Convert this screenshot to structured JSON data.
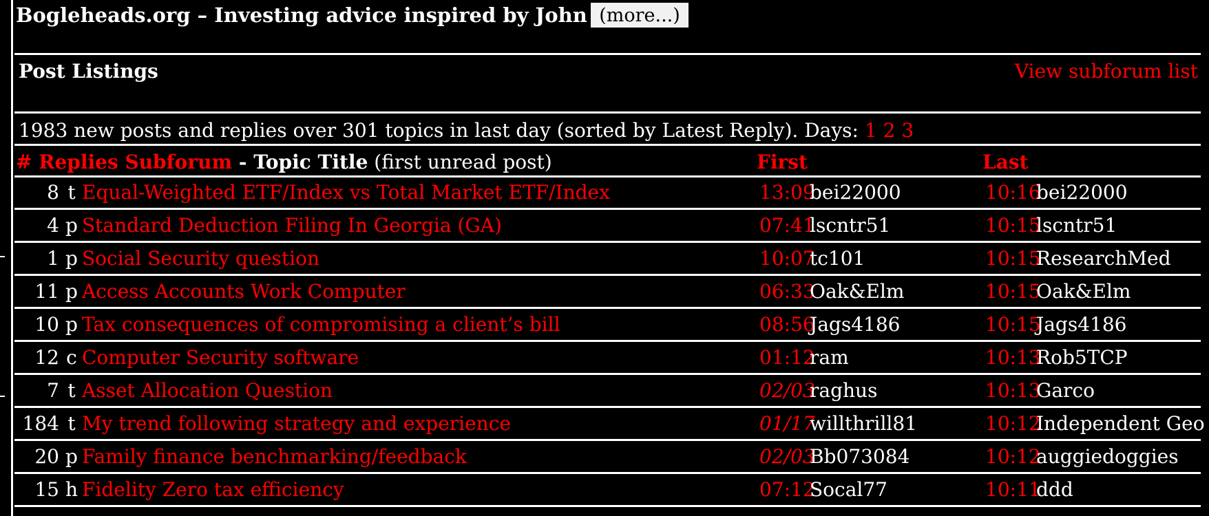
{
  "site": {
    "title": "Bogleheads.org – Investing advice inspired by John Bogle",
    "more_label": "(more...)"
  },
  "section": {
    "title": "Post Listings",
    "subforum_link": "View subforum list"
  },
  "summary": {
    "text": "1983 new posts and replies over 301 topics in last day (sorted by Latest Reply). Days:",
    "days": [
      "1",
      "2",
      "3"
    ]
  },
  "table": {
    "header": {
      "replies_subforum": "# Replies Subforum",
      "dash": " - ",
      "topic_title": "Topic Title",
      "first_unread": " (first unread post)",
      "first": "First",
      "last": "Last"
    },
    "rows": [
      {
        "replies": "8",
        "cat": "t",
        "title": "Equal-Weighted ETF/Index vs Total Market ETF/Index",
        "first_time": "13:09",
        "first_user": "bei22000",
        "last_time": "10:16",
        "last_user": "bei22000"
      },
      {
        "replies": "4",
        "cat": "p",
        "title": "Standard Deduction Filing In Georgia (GA)",
        "first_time": "07:41",
        "first_user": "lscntr51",
        "last_time": "10:15",
        "last_user": "lscntr51"
      },
      {
        "replies": "1",
        "cat": "p",
        "title": "Social Security question",
        "first_time": "10:07",
        "first_user": "tc101",
        "last_time": "10:15",
        "last_user": "ResearchMed"
      },
      {
        "replies": "11",
        "cat": "p",
        "title": "Access Accounts Work Computer",
        "first_time": "06:33",
        "first_user": "Oak&Elm",
        "last_time": "10:15",
        "last_user": "Oak&Elm"
      },
      {
        "replies": "10",
        "cat": "p",
        "title": "Tax consequences of compromising a client’s bill",
        "first_time": "08:56",
        "first_user": "Jags4186",
        "last_time": "10:15",
        "last_user": "Jags4186"
      },
      {
        "replies": "12",
        "cat": "c",
        "title": "Computer Security software",
        "first_time": "01:12",
        "first_user": "ram",
        "last_time": "10:13",
        "last_user": "Rob5TCP"
      },
      {
        "replies": "7",
        "cat": "t",
        "title": "Asset Allocation Question",
        "first_time": "02/03",
        "first_user": "raghus",
        "last_time": "10:13",
        "last_user": "Garco"
      },
      {
        "replies": "184",
        "cat": "t",
        "title": "My trend following strategy and experience",
        "first_time": "01/17",
        "first_user": "willthrill81",
        "last_time": "10:12",
        "last_user": "Independent Geo"
      },
      {
        "replies": "20",
        "cat": "p",
        "title": "Family finance benchmarking/feedback",
        "first_time": "02/03",
        "first_user": "Bb073084",
        "last_time": "10:12",
        "last_user": "auggiedoggies"
      },
      {
        "replies": "15",
        "cat": "h",
        "title": "Fidelity Zero tax efficiency",
        "first_time": "07:12",
        "first_user": "Socal77",
        "last_time": "10:11",
        "last_user": "ddd"
      }
    ]
  }
}
